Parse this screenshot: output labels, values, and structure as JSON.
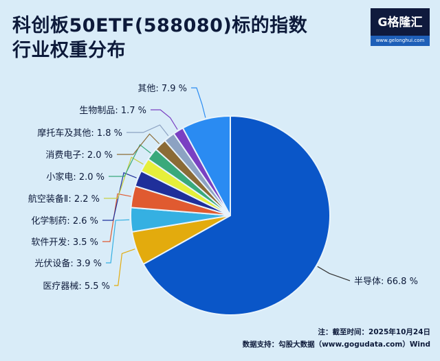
{
  "header": {
    "title_line1": "科创板50ETF(588080)标的指数",
    "title_line2": "行业权重分布"
  },
  "logo": {
    "brand": "G格隆汇",
    "url": "www.gelonghui.com"
  },
  "notes": {
    "date": "注：截至时间：2025年10月24日",
    "source": "数据支持：勾股大数据（www.gogudata.com）Wind"
  },
  "chart_data": {
    "type": "pie",
    "start": "12 o'clock, clockwise",
    "slices": [
      {
        "label": "半导体",
        "value": 66.8,
        "text": "半导体: 66.8 %",
        "color": "#0a56c8"
      },
      {
        "label": "医疗器械",
        "value": 5.5,
        "text": "医疗器械: 5.5 %",
        "color": "#e3ab0d"
      },
      {
        "label": "光伏设备",
        "value": 3.9,
        "text": "光伏设备: 3.9 %",
        "color": "#35b0e2"
      },
      {
        "label": "软件开发",
        "value": 3.5,
        "text": "软件开发: 3.5 %",
        "color": "#e05a30"
      },
      {
        "label": "化学制药",
        "value": 2.6,
        "text": "化学制药: 2.6 %",
        "color": "#1f2f9a"
      },
      {
        "label": "航空装备Ⅱ",
        "value": 2.2,
        "text": "航空装备Ⅱ: 2.2 %",
        "color": "#e6ef3a"
      },
      {
        "label": "小家电",
        "value": 2.0,
        "text": "小家电: 2.0 %",
        "color": "#39a97b"
      },
      {
        "label": "消费电子",
        "value": 2.0,
        "text": "消费电子: 2.0 %",
        "color": "#8b6b36"
      },
      {
        "label": "摩托车及其他",
        "value": 1.8,
        "text": "摩托车及其他: 1.8 %",
        "color": "#8ca2c2"
      },
      {
        "label": "生物制品",
        "value": 1.7,
        "text": "生物制品: 1.7 %",
        "color": "#7a40c2"
      },
      {
        "label": "其他",
        "value": 7.9,
        "text": "其他: 7.9 %",
        "color": "#2a8bf2"
      }
    ]
  }
}
